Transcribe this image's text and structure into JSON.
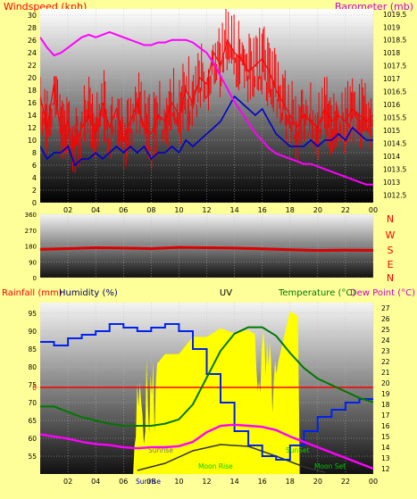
{
  "colors": {
    "background": "#ffff99",
    "wind": "#ff0000",
    "gust": "#ff0000",
    "avg_wind": "#0000cc",
    "barometer": "#ff00ff",
    "direction": "#dd0000",
    "humidity": "#0022ee",
    "temperature": "#007700",
    "dewpoint": "#ff00ff",
    "uv": "#ffff00",
    "solar": "#ffff00",
    "rain": "#ff0000",
    "moon": "#333333",
    "label_red": "#ff0000",
    "label_navy": "#000066",
    "label_green": "#007700",
    "label_magenta": "#cc00cc"
  },
  "header": {
    "left": "Windspeed (kph)",
    "center": "",
    "right": "Barometer (mb)"
  },
  "compass": [
    "N",
    "W",
    "S",
    "E",
    "N"
  ],
  "footer": {
    "rainfall": "Rainfall (mm)",
    "humidity": "Humidity (%)",
    "uv": "UV",
    "temperature": "Temperature (°C)",
    "dewpoint": "Dew Point (°C)"
  },
  "events": {
    "sunrise": "Sunrise",
    "sunset": "SunSet",
    "moonrise": "Moon Rise",
    "moonset": "Moon Set"
  },
  "chart_data": [
    {
      "type": "line",
      "ylabel": "Windspeed (kph)",
      "y2label": "Barometer (mb)",
      "x_ticks": [
        "02",
        "04",
        "06",
        "08",
        "10",
        "12",
        "14",
        "16",
        "18",
        "20",
        "22",
        "00"
      ],
      "xlim": [
        0,
        24
      ],
      "ylim": [
        0,
        31
      ],
      "y_ticks": [
        0,
        2,
        4,
        6,
        8,
        10,
        12,
        14,
        16,
        18,
        20,
        22,
        24,
        26,
        28,
        30
      ],
      "y2lim": [
        1012.2,
        1019.7
      ],
      "y2_ticks": [
        1012.5,
        1013,
        1013.5,
        1014,
        1014.5,
        1015,
        1015.5,
        1016,
        1016.5,
        1017,
        1017.5,
        1018,
        1018.5,
        1019,
        1019.5
      ],
      "series": [
        {
          "x": [
            0,
            0.5,
            1,
            1.5,
            2,
            2.5,
            3,
            3.5,
            4,
            4.5,
            5,
            5.5,
            6,
            6.5,
            7,
            7.5,
            8,
            8.5,
            9,
            9.5,
            10,
            10.5,
            11,
            11.5,
            12,
            12.5,
            13,
            13.5,
            14,
            14.5,
            15,
            15.5,
            16,
            16.5,
            17,
            17.5,
            18,
            18.5,
            19,
            19.5,
            20,
            20.5,
            21,
            21.5,
            22,
            22.5,
            23,
            23.5,
            24
          ],
          "values": [
            17,
            12,
            19,
            11,
            13,
            9,
            12,
            14,
            11,
            16,
            12,
            15,
            10,
            13,
            16,
            12,
            11,
            14,
            13,
            16,
            14,
            18,
            16,
            20,
            19,
            24,
            22,
            26,
            24,
            23,
            21,
            22,
            23,
            21,
            18,
            16,
            14,
            12,
            14,
            13,
            12,
            15,
            13,
            14,
            13,
            15,
            14,
            13,
            14
          ]
        },
        {
          "x": [
            0,
            0.5,
            1,
            1.5,
            2,
            2.5,
            3,
            3.5,
            4,
            4.5,
            5,
            5.5,
            6,
            6.5,
            7,
            7.5,
            8,
            8.5,
            9,
            9.5,
            10,
            10.5,
            11,
            11.5,
            12,
            12.5,
            13,
            13.5,
            14,
            14.5,
            15,
            15.5,
            16,
            16.5,
            17,
            17.5,
            18,
            18.5,
            19,
            19.5,
            20,
            20.5,
            21,
            21.5,
            22,
            22.5,
            23,
            23.5,
            24
          ],
          "values": [
            9,
            7,
            8,
            8,
            9,
            6,
            7,
            7,
            8,
            7,
            8,
            9,
            8,
            9,
            8,
            9,
            7,
            8,
            8,
            9,
            8,
            10,
            9,
            10,
            11,
            12,
            13,
            15,
            17,
            16,
            15,
            14,
            15,
            13,
            11,
            10,
            9,
            9,
            9,
            10,
            9,
            10,
            10,
            11,
            10,
            12,
            11,
            10,
            10
          ]
        },
        {
          "x": [
            0,
            0.5,
            1,
            1.5,
            2,
            2.5,
            3,
            3.5,
            4,
            4.5,
            5,
            5.5,
            6,
            6.5,
            7,
            7.5,
            8,
            8.5,
            9,
            9.5,
            10,
            10.5,
            11,
            11.5,
            12,
            12.5,
            13,
            13.5,
            14,
            14.5,
            15,
            15.5,
            16,
            16.5,
            17,
            17.5,
            18,
            18.5,
            19,
            19.5,
            20,
            20.5,
            21,
            21.5,
            22,
            22.5,
            23,
            23.5,
            24
          ],
          "values": [
            1018.6,
            1018.2,
            1017.9,
            1018.0,
            1018.2,
            1018.4,
            1018.6,
            1018.7,
            1018.6,
            1018.7,
            1018.8,
            1018.7,
            1018.6,
            1018.5,
            1018.4,
            1018.3,
            1018.3,
            1018.4,
            1018.4,
            1018.5,
            1018.5,
            1018.5,
            1018.4,
            1018.2,
            1018.0,
            1017.6,
            1017.1,
            1016.6,
            1016.1,
            1015.7,
            1015.3,
            1014.9,
            1014.6,
            1014.3,
            1014.1,
            1014.0,
            1013.9,
            1013.8,
            1013.7,
            1013.7,
            1013.6,
            1013.5,
            1013.4,
            1013.3,
            1013.2,
            1013.1,
            1013.0,
            1012.9,
            1012.9
          ]
        }
      ]
    },
    {
      "type": "line",
      "x_ticks": [
        "02",
        "04",
        "06",
        "08",
        "10",
        "12",
        "14",
        "16",
        "18",
        "20",
        "22",
        "00"
      ],
      "xlim": [
        0,
        24
      ],
      "ylim": [
        0,
        360
      ],
      "y_ticks": [
        0,
        90,
        180,
        270,
        360
      ],
      "series": [
        {
          "x": [
            0,
            2,
            4,
            6,
            8,
            10,
            12,
            14,
            16,
            18,
            20,
            22,
            24
          ],
          "values": [
            160,
            165,
            170,
            168,
            165,
            172,
            170,
            168,
            164,
            158,
            154,
            156,
            155
          ]
        }
      ]
    },
    {
      "type": "line",
      "x_ticks": [
        "02",
        "04",
        "06",
        "08",
        "10",
        "12",
        "14",
        "16",
        "18",
        "20",
        "22",
        "00"
      ],
      "xlim": [
        0,
        24
      ],
      "humidity_ylim": [
        50,
        98
      ],
      "humidity_ticks": [
        55,
        60,
        65,
        70,
        75,
        80,
        85,
        90,
        95
      ],
      "rain_ticks": [
        0
      ],
      "temp_ylim": [
        11.5,
        27.5
      ],
      "temp_ticks": [
        12,
        13,
        14,
        15,
        16,
        17,
        18,
        19,
        20,
        21,
        22,
        23,
        24,
        25,
        26,
        27
      ],
      "series": [
        {
          "x": [
            0,
            1,
            2,
            3,
            4,
            5,
            6,
            7,
            8,
            9,
            10,
            11,
            12,
            13,
            14,
            15,
            16,
            17,
            18,
            19,
            20,
            21,
            22,
            23,
            24
          ],
          "values": [
            87,
            86,
            88,
            89,
            90,
            92,
            91,
            90,
            91,
            92,
            90,
            85,
            78,
            70,
            62,
            58,
            55,
            54,
            58,
            62,
            66,
            68,
            70,
            71,
            71
          ]
        },
        {
          "x": [
            0,
            1,
            2,
            3,
            4,
            5,
            6,
            7,
            8,
            9,
            10,
            11,
            12,
            13,
            14,
            15,
            16,
            17,
            18,
            19,
            20,
            21,
            22,
            23,
            24
          ],
          "values": [
            17.8,
            17.8,
            17.3,
            16.8,
            16.5,
            16.2,
            16.0,
            16.0,
            16.0,
            16.2,
            16.6,
            18.0,
            20.5,
            23.0,
            24.6,
            25.2,
            25.2,
            24.4,
            22.8,
            21.4,
            20.4,
            19.8,
            19.2,
            18.6,
            18.2
          ]
        },
        {
          "x": [
            0,
            1,
            2,
            3,
            4,
            5,
            6,
            7,
            8,
            9,
            10,
            11,
            12,
            13,
            14,
            15,
            16,
            17,
            18,
            19,
            20,
            21,
            22,
            23,
            24
          ],
          "values": [
            15.2,
            15.0,
            14.8,
            14.5,
            14.3,
            14.2,
            14.0,
            13.9,
            14.0,
            14.0,
            14.1,
            14.5,
            15.4,
            16.0,
            16.1,
            16.0,
            15.9,
            15.6,
            15.0,
            14.5,
            14.0,
            13.5,
            13.0,
            12.5,
            12.0
          ]
        },
        {
          "x": [
            6.7,
            7,
            8,
            9,
            10,
            11,
            12,
            13,
            14,
            15,
            16,
            17,
            18,
            18.6,
            18.7
          ],
          "values": [
            0,
            5,
            6,
            7,
            7,
            8,
            8,
            8.5,
            8.2,
            8.4,
            7.9,
            6,
            9.5,
            9.2,
            0
          ]
        },
        {
          "x": [
            0,
            24
          ],
          "values": [
            0,
            0
          ]
        }
      ]
    }
  ]
}
